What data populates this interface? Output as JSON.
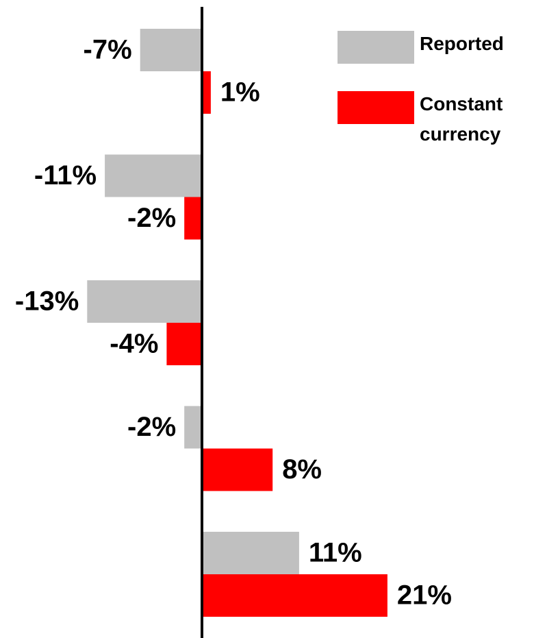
{
  "chart_data": {
    "type": "hbar",
    "categories": [
      null,
      null,
      null,
      null,
      null
    ],
    "series": [
      {
        "name": "Reported",
        "color": "#c0c0c0",
        "values": [
          -7,
          -11,
          -13,
          -2,
          11
        ],
        "value_labels": [
          "-7%",
          "-11%",
          "-13%",
          "-2%",
          "11%"
        ]
      },
      {
        "name": "Constant currency",
        "color": "#ff0000",
        "values": [
          1,
          -2,
          -4,
          8,
          21
        ],
        "value_labels": [
          "1%",
          "-2%",
          "-4%",
          "8%",
          "21%"
        ]
      }
    ],
    "xlim": [
      -20,
      30
    ],
    "legend": "upper right"
  }
}
